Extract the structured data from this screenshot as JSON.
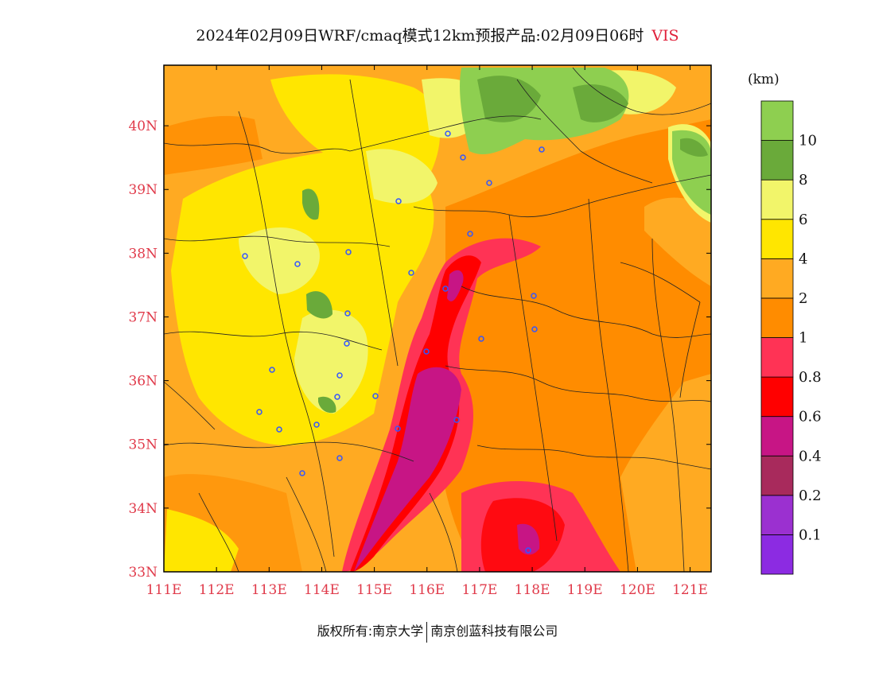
{
  "title": {
    "text": "2024年02月09日WRF/cmaq模式12km预报产品:02月09日06时",
    "variable": "VIS"
  },
  "colorbar": {
    "unit": "(km)",
    "bins": [
      {
        "color": "#8c2be2",
        "label": "0.1"
      },
      {
        "color": "#9b30d0",
        "label": "0.2"
      },
      {
        "color": "#a82a5c",
        "label": "0.4"
      },
      {
        "color": "#c71585",
        "label": "0.6"
      },
      {
        "color": "#ff0000",
        "label": "0.8"
      },
      {
        "color": "#ff3355",
        "label": "1"
      },
      {
        "color": "#ff8c00",
        "label": "2"
      },
      {
        "color": "#ffaa22",
        "label": "4"
      },
      {
        "color": "#ffe600",
        "label": "6"
      },
      {
        "color": "#f2f56a",
        "label": "8"
      },
      {
        "color": "#6aaa3a",
        "label": "10"
      },
      {
        "color": "#8ecf50",
        "label": ""
      }
    ]
  },
  "axes": {
    "x_ticks": [
      "111E",
      "112E",
      "113E",
      "114E",
      "115E",
      "116E",
      "117E",
      "118E",
      "119E",
      "120E",
      "121E"
    ],
    "y_ticks": [
      "33N",
      "34N",
      "35N",
      "36N",
      "37N",
      "38N",
      "39N",
      "40N"
    ]
  },
  "footer": {
    "copyright": "版权所有:南京大学",
    "company": "南京创蓝科技有限公司"
  }
}
